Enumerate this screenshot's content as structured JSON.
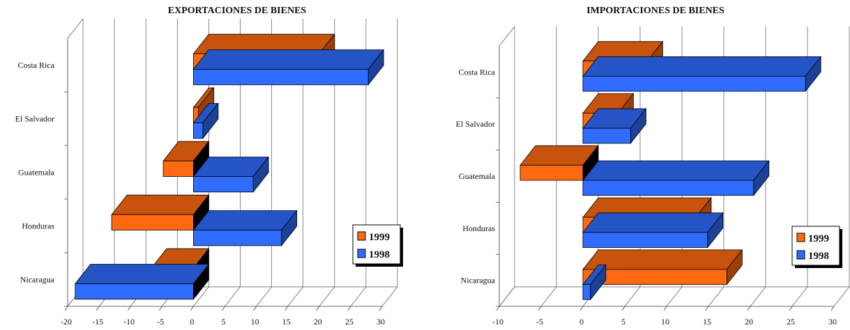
{
  "chart_data": [
    {
      "type": "bar",
      "orientation": "horizontal",
      "title": "EXPORTACIONES DE BIENES",
      "categories": [
        "Costa Rica",
        "El Salvador",
        "Guatemala",
        "Honduras",
        "Nicaragua"
      ],
      "series": [
        {
          "name": "1999",
          "values": [
            20,
            0.8,
            -4.8,
            -13,
            -6.7
          ]
        },
        {
          "name": "1998",
          "values": [
            27.8,
            1.5,
            9.5,
            14,
            -18.8
          ]
        }
      ],
      "xlim": [
        -20,
        30
      ],
      "xticks": [
        -20,
        -15,
        -10,
        -5,
        0,
        5,
        10,
        15,
        20,
        25,
        30
      ],
      "grid": true,
      "legend": "right",
      "colors": {
        "1999": "#ff6a10",
        "1998": "#2f6cff"
      }
    },
    {
      "type": "bar",
      "orientation": "horizontal",
      "title": "IMPORTACIONES DE BIENES",
      "categories": [
        "Costa Rica",
        "El Salvador",
        "Guatemala",
        "Honduras",
        "Nicaragua"
      ],
      "series": [
        {
          "name": "1999",
          "values": [
            7.7,
            4.2,
            -7.5,
            13.5,
            17.2
          ]
        },
        {
          "name": "1998",
          "values": [
            26.6,
            5.7,
            20.4,
            14.9,
            0.9
          ]
        }
      ],
      "xlim": [
        -10,
        30
      ],
      "xticks": [
        -10,
        -5,
        0,
        5,
        10,
        15,
        20,
        25,
        30
      ],
      "grid": true,
      "legend": "right",
      "colors": {
        "1999": "#ff6a10",
        "1998": "#2f6cff"
      }
    }
  ]
}
